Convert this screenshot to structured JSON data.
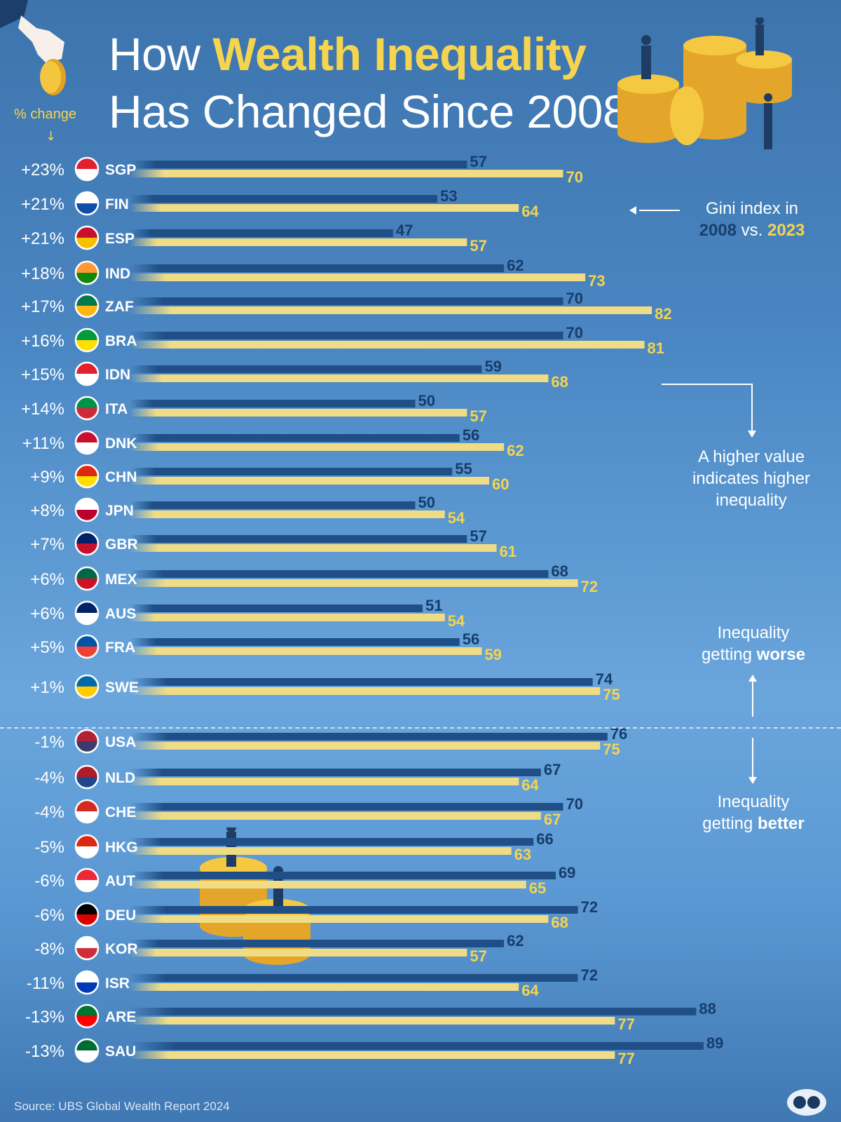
{
  "title": {
    "line1_pre": "How ",
    "line1_hl": "Wealth Inequality",
    "line2": "Has Changed Since 2008"
  },
  "pct_header": "% change",
  "source": "Source: UBS Global Wealth Report 2024",
  "notes": {
    "legend_line1": "Gini index in",
    "legend_2008": "2008",
    "legend_vs": " vs. ",
    "legend_2023": "2023",
    "higher_value": "A higher value indicates higher inequality",
    "worse_pre": "Inequality getting ",
    "worse_word": "worse",
    "better_pre": "Inequality getting ",
    "better_word": "better"
  },
  "colors": {
    "bar_2008": "#1f4f86",
    "bar_2023": "#f1dc86",
    "label_2008": "#163d6b",
    "label_2023": "#f5d44f",
    "accent": "#f5d44f"
  },
  "chart_data": {
    "type": "bar",
    "orientation": "horizontal",
    "series": [
      {
        "name": "2008"
      },
      {
        "name": "2023"
      }
    ],
    "rows": [
      {
        "code": "SGP",
        "change": "+23%",
        "v2008": 57,
        "v2023": 70,
        "flag": "singapore-flag"
      },
      {
        "code": "FIN",
        "change": "+21%",
        "v2008": 53,
        "v2023": 64,
        "flag": "finland-flag"
      },
      {
        "code": "ESP",
        "change": "+21%",
        "v2008": 47,
        "v2023": 57,
        "flag": "spain-flag"
      },
      {
        "code": "IND",
        "change": "+18%",
        "v2008": 62,
        "v2023": 73,
        "flag": "india-flag"
      },
      {
        "code": "ZAF",
        "change": "+17%",
        "v2008": 70,
        "v2023": 82,
        "flag": "south-africa-flag"
      },
      {
        "code": "BRA",
        "change": "+16%",
        "v2008": 70,
        "v2023": 81,
        "flag": "brazil-flag"
      },
      {
        "code": "IDN",
        "change": "+15%",
        "v2008": 59,
        "v2023": 68,
        "flag": "indonesia-flag"
      },
      {
        "code": "ITA",
        "change": "+14%",
        "v2008": 50,
        "v2023": 57,
        "flag": "italy-flag"
      },
      {
        "code": "DNK",
        "change": "+11%",
        "v2008": 56,
        "v2023": 62,
        "flag": "denmark-flag"
      },
      {
        "code": "CHN",
        "change": "+9%",
        "v2008": 55,
        "v2023": 60,
        "flag": "china-flag"
      },
      {
        "code": "JPN",
        "change": "+8%",
        "v2008": 50,
        "v2023": 54,
        "flag": "japan-flag"
      },
      {
        "code": "GBR",
        "change": "+7%",
        "v2008": 57,
        "v2023": 61,
        "flag": "uk-flag"
      },
      {
        "code": "MEX",
        "change": "+6%",
        "v2008": 68,
        "v2023": 72,
        "flag": "mexico-flag"
      },
      {
        "code": "AUS",
        "change": "+6%",
        "v2008": 51,
        "v2023": 54,
        "flag": "australia-flag"
      },
      {
        "code": "FRA",
        "change": "+5%",
        "v2008": 56,
        "v2023": 59,
        "flag": "france-flag"
      },
      {
        "code": "SWE",
        "change": "+1%",
        "v2008": 74,
        "v2023": 75,
        "flag": "sweden-flag"
      },
      {
        "code": "USA",
        "change": "-1%",
        "v2008": 76,
        "v2023": 75,
        "flag": "usa-flag"
      },
      {
        "code": "NLD",
        "change": "-4%",
        "v2008": 67,
        "v2023": 64,
        "flag": "netherlands-flag"
      },
      {
        "code": "CHE",
        "change": "-4%",
        "v2008": 70,
        "v2023": 67,
        "flag": "switzerland-flag"
      },
      {
        "code": "HKG",
        "change": "-5%",
        "v2008": 66,
        "v2023": 63,
        "flag": "hong-kong-flag"
      },
      {
        "code": "AUT",
        "change": "-6%",
        "v2008": 69,
        "v2023": 65,
        "flag": "austria-flag"
      },
      {
        "code": "DEU",
        "change": "-6%",
        "v2008": 72,
        "v2023": 68,
        "flag": "germany-flag"
      },
      {
        "code": "KOR",
        "change": "-8%",
        "v2008": 62,
        "v2023": 57,
        "flag": "south-korea-flag"
      },
      {
        "code": "ISR",
        "change": "-11%",
        "v2008": 72,
        "v2023": 64,
        "flag": "israel-flag"
      },
      {
        "code": "ARE",
        "change": "-13%",
        "v2008": 88,
        "v2023": 77,
        "flag": "uae-flag"
      },
      {
        "code": "SAU",
        "change": "-13%",
        "v2008": 89,
        "v2023": 77,
        "flag": "saudi-arabia-flag"
      }
    ]
  }
}
